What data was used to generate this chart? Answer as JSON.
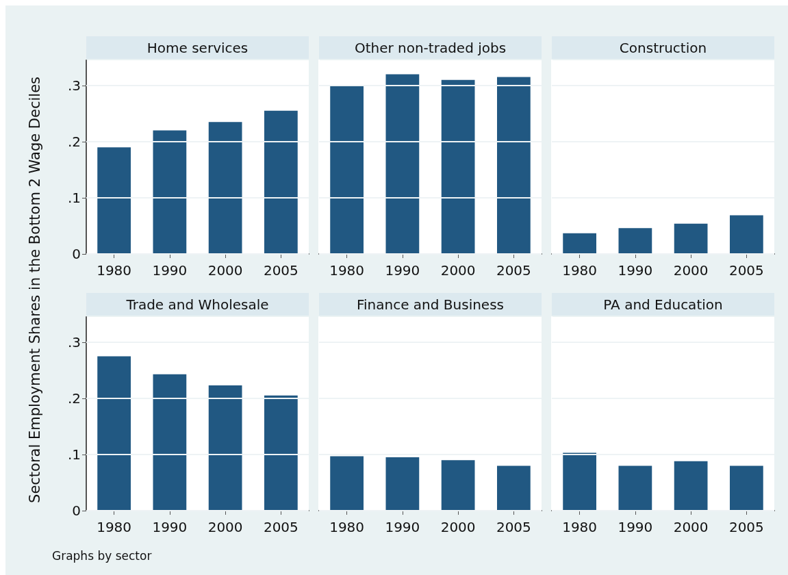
{
  "chart_data": [
    {
      "type": "bar",
      "title": "Home services",
      "ylabel": "Sectoral Employment Shares in the Bottom 2 Wage Deciles",
      "categories": [
        "1980",
        "1990",
        "2000",
        "2005"
      ],
      "values": [
        0.19,
        0.22,
        0.235,
        0.255
      ],
      "color": "#215882",
      "ylim": [
        0,
        0.345
      ],
      "yticks": [
        0,
        {
          "value": 0.1,
          "label": ".1"
        },
        {
          "value": 0.2,
          "label": ".2"
        },
        {
          "value": 0.3,
          "label": ".3"
        }
      ],
      "grid": "y"
    },
    {
      "type": "bar",
      "title": "Other non-traded jobs",
      "categories": [
        "1980",
        "1990",
        "2000",
        "2005"
      ],
      "values": [
        0.299,
        0.32,
        0.31,
        0.315
      ],
      "color": "#215882",
      "ylim": [
        0,
        0.345
      ],
      "yticks": [
        0,
        0.1,
        0.2,
        0.3
      ],
      "grid": "y",
      "tick_labels": "x"
    },
    {
      "type": "bar",
      "title": "Construction",
      "categories": [
        "1980",
        "1990",
        "2000",
        "2005"
      ],
      "values": [
        0.037,
        0.046,
        0.054,
        0.069
      ],
      "color": "#215882",
      "ylim": [
        0,
        0.345
      ],
      "yticks": [
        0,
        0.1,
        0.2,
        0.3
      ],
      "grid": "y",
      "tick_labels": "x"
    },
    {
      "type": "bar",
      "title": "Trade and Wholesale",
      "annotations": [
        "Graphs by sector"
      ],
      "categories": [
        "1980",
        "1990",
        "2000",
        "2005"
      ],
      "values": [
        0.275,
        0.243,
        0.223,
        0.205
      ],
      "color": "#215882",
      "ylim": [
        0,
        0.345
      ],
      "yticks": [
        0,
        {
          "value": 0.1,
          "label": ".1"
        },
        {
          "value": 0.2,
          "label": ".2"
        },
        {
          "value": 0.3,
          "label": ".3"
        }
      ],
      "grid": "y"
    },
    {
      "type": "bar",
      "title": "Finance and Business",
      "categories": [
        "1980",
        "1990",
        "2000",
        "2005"
      ],
      "values": [
        0.097,
        0.095,
        0.09,
        0.08
      ],
      "color": "#215882",
      "ylim": [
        0,
        0.345
      ],
      "yticks": [
        0,
        0.1,
        0.2,
        0.3
      ],
      "grid": "y",
      "tick_labels": "x"
    },
    {
      "type": "bar",
      "title": "PA and Education",
      "categories": [
        "1980",
        "1990",
        "2000",
        "2005"
      ],
      "values": [
        0.103,
        0.08,
        0.088,
        0.08
      ],
      "color": "#215882",
      "ylim": [
        0,
        0.345
      ],
      "yticks": [
        0,
        0.1,
        0.2,
        0.3
      ],
      "grid": "y",
      "tick_labels": "x"
    }
  ]
}
